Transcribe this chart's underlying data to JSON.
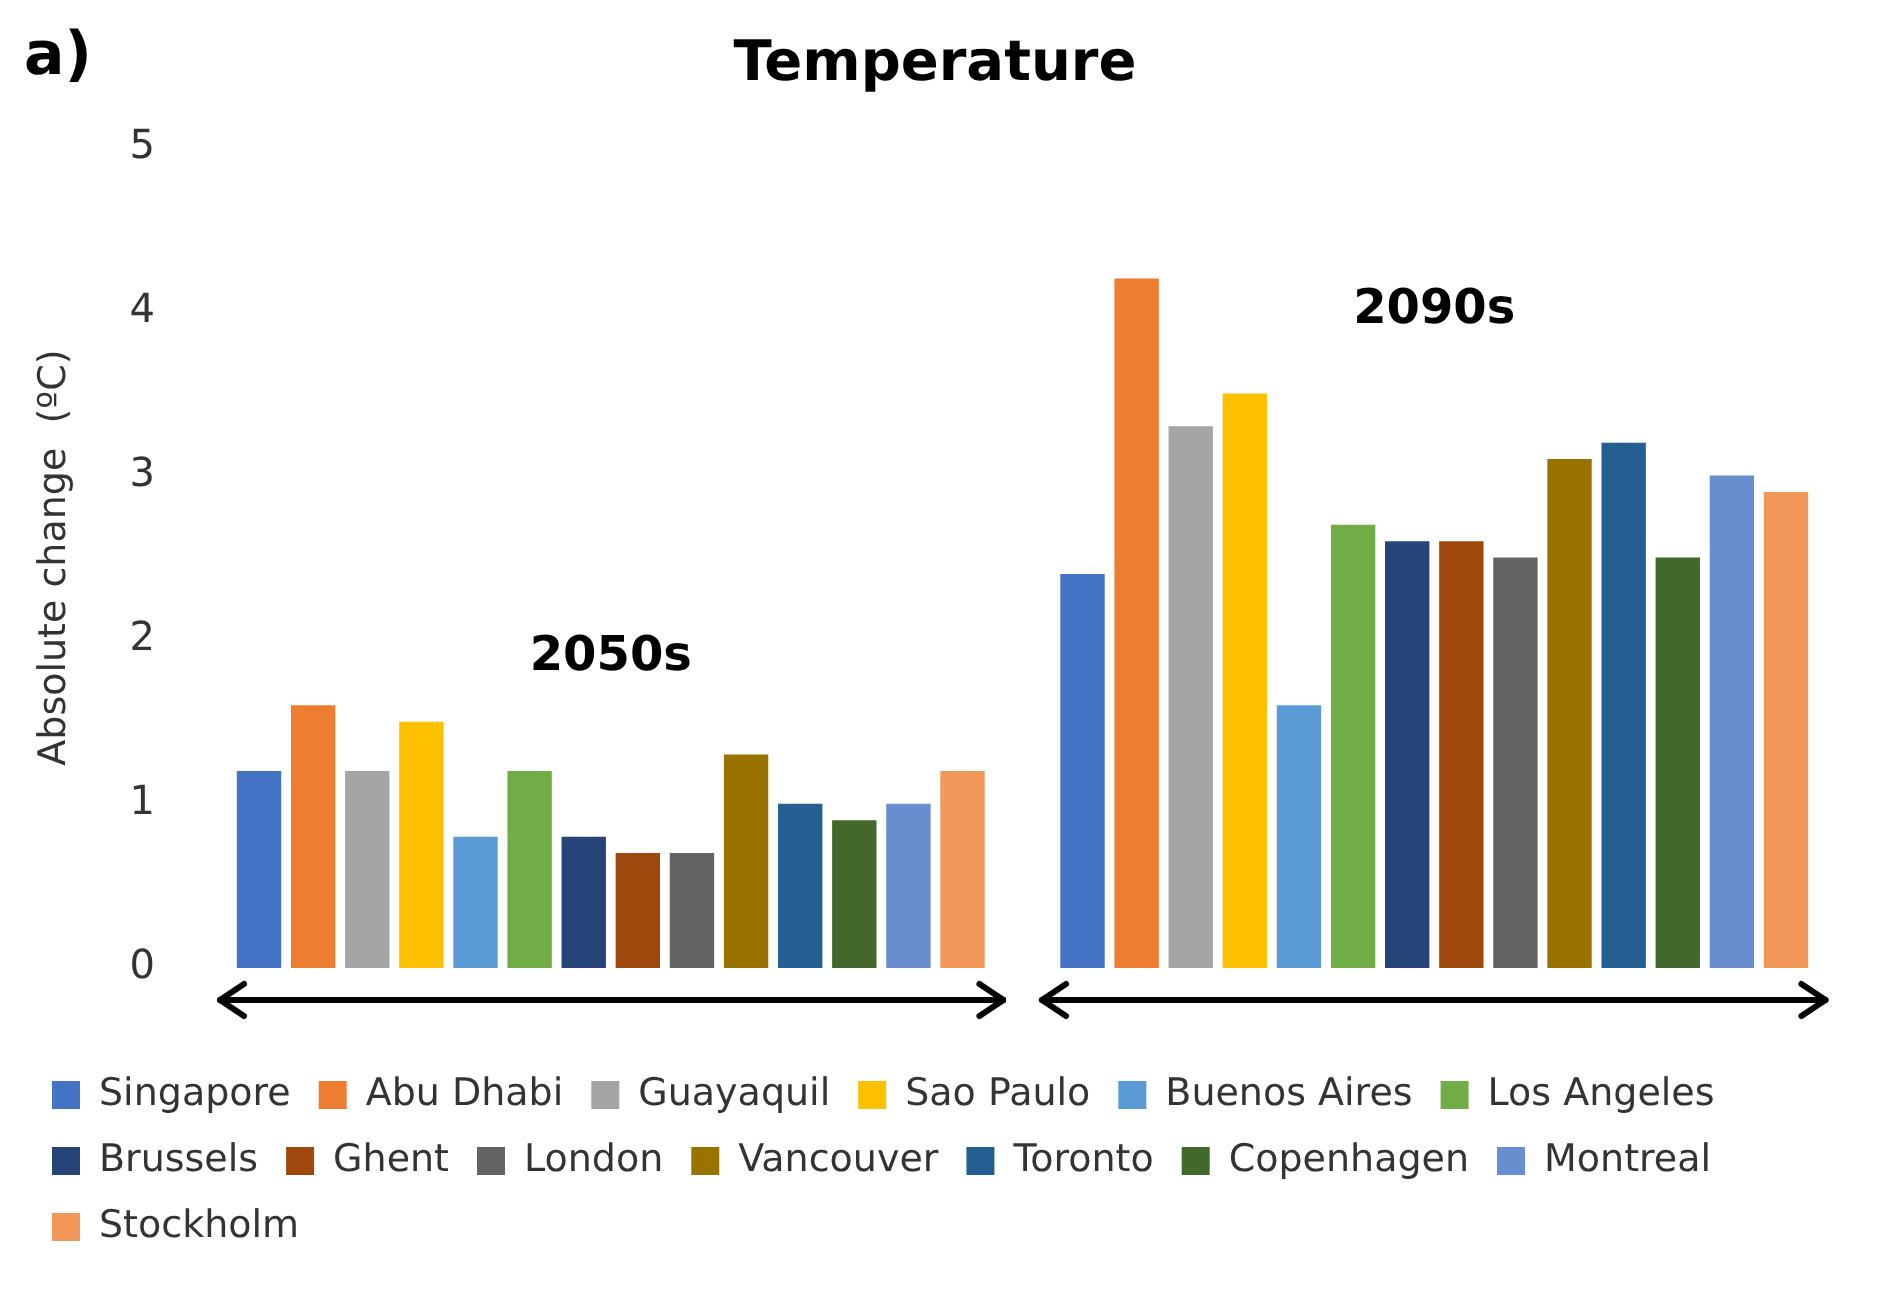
{
  "chart_data": {
    "type": "bar",
    "title": "Temperature",
    "ylabel": "Absolute change  (ºC)",
    "annotations": [
      "a)"
    ],
    "categories": [
      "2050s",
      "2090s"
    ],
    "series": [
      {
        "name": "Singapore",
        "color": "#4472c4",
        "values": [
          1.2,
          2.4
        ]
      },
      {
        "name": "Abu Dhabi",
        "color": "#ed7d31",
        "values": [
          1.6,
          4.2
        ]
      },
      {
        "name": "Guayaquil",
        "color": "#a5a5a5",
        "values": [
          1.2,
          3.3
        ]
      },
      {
        "name": "Sao Paulo",
        "color": "#ffc000",
        "values": [
          1.5,
          3.5
        ]
      },
      {
        "name": "Buenos Aires",
        "color": "#5b9bd5",
        "values": [
          0.8,
          1.6
        ]
      },
      {
        "name": "Los Angeles",
        "color": "#70ad47",
        "values": [
          1.2,
          2.7
        ]
      },
      {
        "name": "Brussels",
        "color": "#264478",
        "values": [
          0.8,
          2.6
        ]
      },
      {
        "name": "Ghent",
        "color": "#9e480e",
        "values": [
          0.7,
          2.6
        ]
      },
      {
        "name": "London",
        "color": "#636363",
        "values": [
          0.7,
          2.5
        ]
      },
      {
        "name": "Vancouver",
        "color": "#997300",
        "values": [
          1.3,
          3.1
        ]
      },
      {
        "name": "Toronto",
        "color": "#255e91",
        "values": [
          1.0,
          3.2
        ]
      },
      {
        "name": "Copenhagen",
        "color": "#43682b",
        "values": [
          0.9,
          2.5
        ]
      },
      {
        "name": "Montreal",
        "color": "#698ed0",
        "values": [
          1.0,
          3.0
        ]
      },
      {
        "name": "Stockholm",
        "color": "#f1975a",
        "values": [
          1.2,
          2.9
        ]
      }
    ],
    "ylim": [
      0,
      5
    ],
    "yticks": [
      0,
      1,
      2,
      3,
      4,
      5
    ],
    "grid": false,
    "legend": "bottom"
  }
}
